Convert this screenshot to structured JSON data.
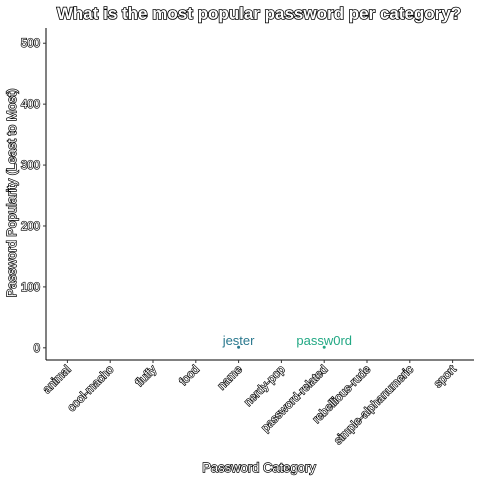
{
  "chart_data": {
    "type": "scatter",
    "title": "What is the most popular password per category?",
    "xlabel": "Password Category",
    "ylabel": "Password Popularity (Least to Most)",
    "categories": [
      "animal",
      "cool-macho",
      "fluffy",
      "food",
      "name",
      "nerdy-pop",
      "password-related",
      "rebellious-rude",
      "simple-alphanumeric",
      "sport"
    ],
    "ylim": [
      -20,
      525
    ],
    "yticks": [
      0,
      100,
      200,
      300,
      400,
      500
    ],
    "grid": false,
    "points": [
      {
        "category": "name",
        "y": 1,
        "label": "jester",
        "color": "#2a788e"
      },
      {
        "category": "password-related",
        "y": 1,
        "label": "passw0rd",
        "color": "#22a884"
      }
    ]
  }
}
